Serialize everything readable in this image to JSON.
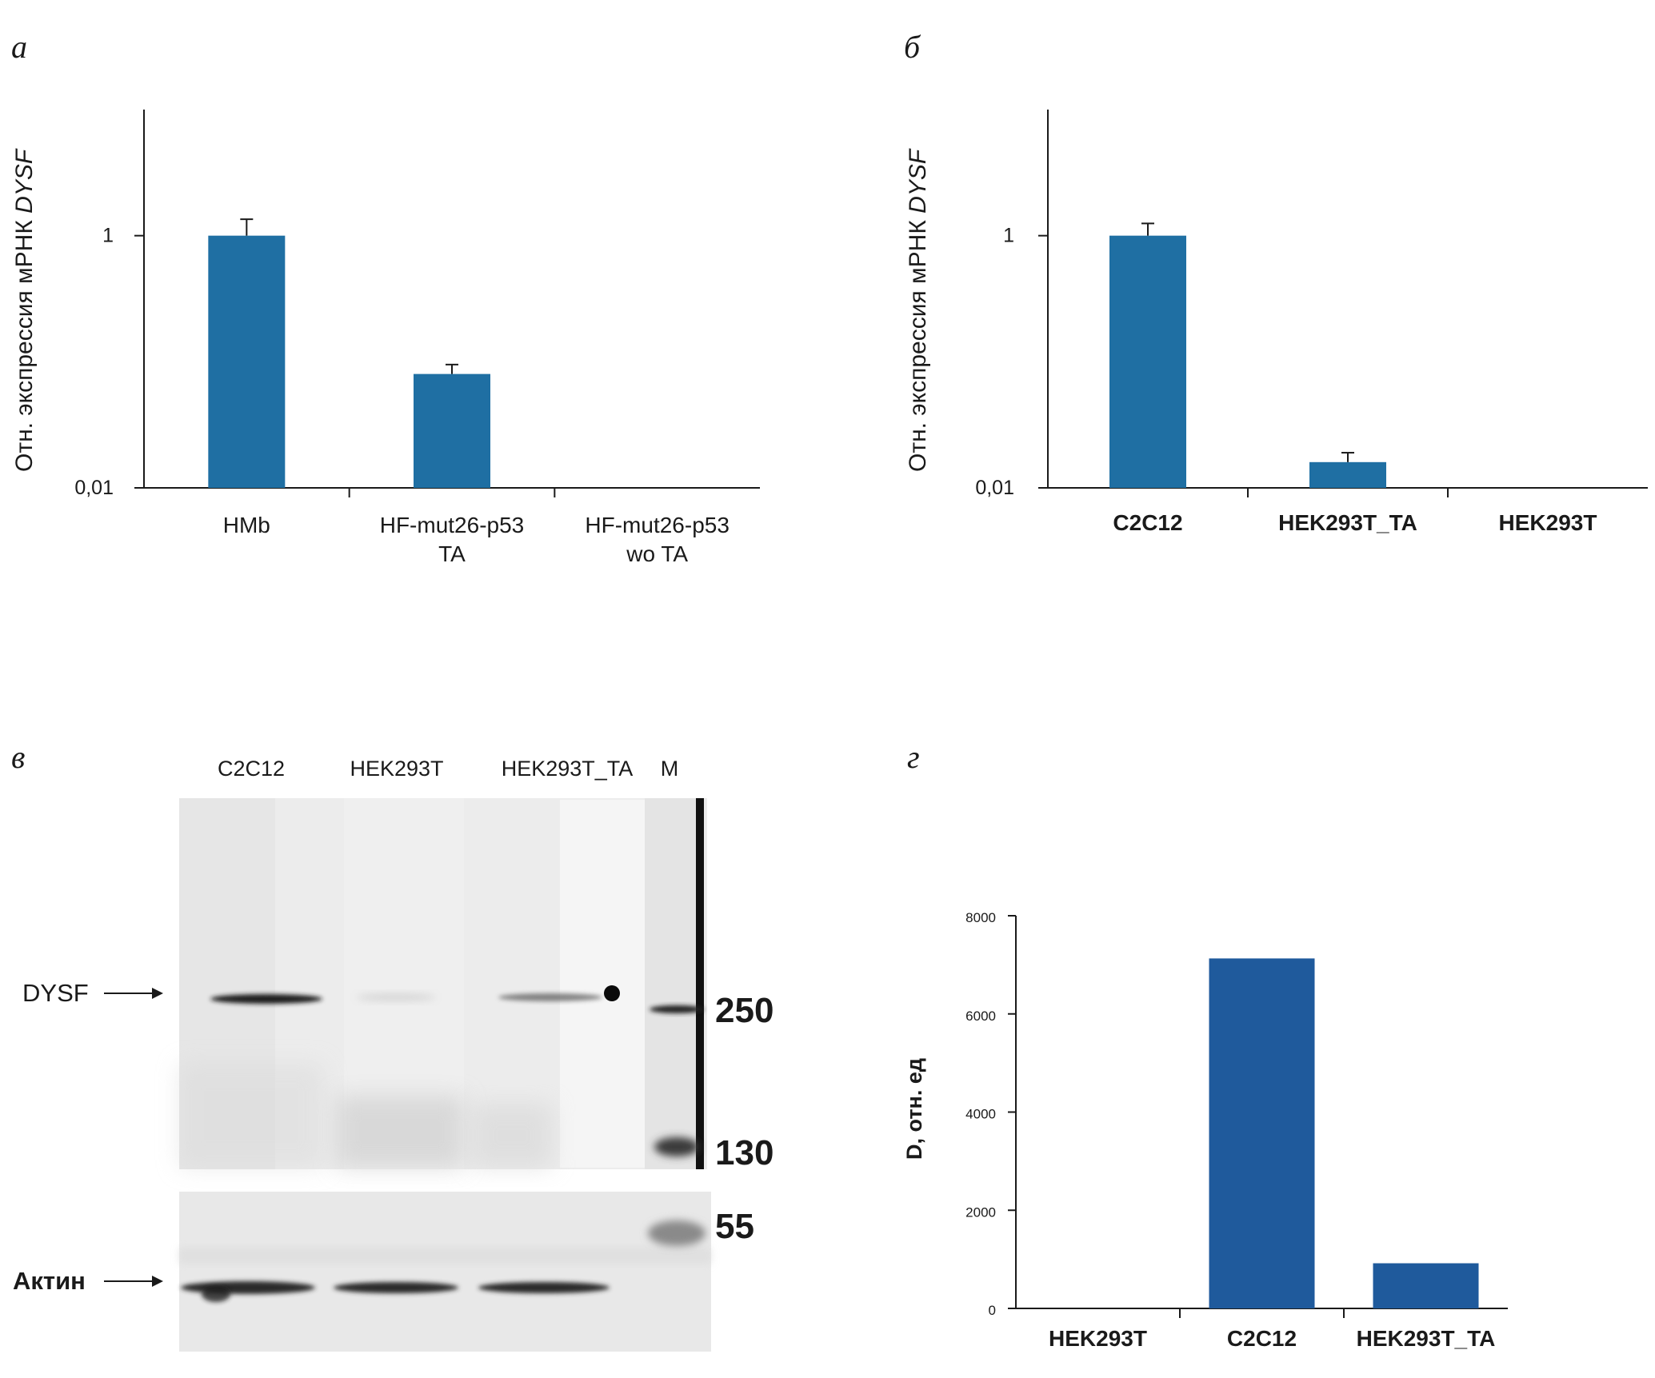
{
  "colors": {
    "bar_blue_top": "#1f6fa3",
    "bar_blue_bottom": "#1f5a9c",
    "axis": "#1a1a1a",
    "blot_background": "#eeeeee"
  },
  "panels": {
    "a": "а",
    "b": "б",
    "v": "в",
    "g": "г"
  },
  "chart_data": [
    {
      "panel": "а",
      "type": "bar",
      "ylabel": "Отн. экспрессия мРНК DYSF",
      "ylabel_plain": "Отн. экспрессия мРНК ",
      "ylabel_italic": "DYSF",
      "yscale": "log",
      "ylim": [
        0.01,
        10
      ],
      "yticks": [
        0.01,
        1
      ],
      "yticklabels": [
        "0,01",
        "1"
      ],
      "categories": [
        "HMb",
        "HF-mut26-p53 TA",
        "HF-mut26-p53 wo TA"
      ],
      "category_lines": [
        [
          "HMb"
        ],
        [
          "HF-mut26-p53",
          "TA"
        ],
        [
          "HF-mut26-p53",
          "wo TA"
        ]
      ],
      "values": [
        1.0,
        0.08,
        null
      ],
      "errors": [
        0.35,
        0.015,
        null
      ]
    },
    {
      "panel": "б",
      "type": "bar",
      "ylabel": "Отн. экспрессия мРНК DYSF",
      "ylabel_plain": "Отн. экспрессия мРНК ",
      "ylabel_italic": "DYSF",
      "yscale": "log",
      "ylim": [
        0.01,
        10
      ],
      "yticks": [
        0.01,
        1
      ],
      "yticklabels": [
        "0,01",
        "1"
      ],
      "categories": [
        "C2C12",
        "HEK293T_TA",
        "HEK293T"
      ],
      "category_lines": [
        [
          "C2C12"
        ],
        [
          "HEK293T_TA"
        ],
        [
          "HEK293T"
        ]
      ],
      "values": [
        1.0,
        0.016,
        null
      ],
      "errors": [
        0.25,
        0.003,
        null
      ]
    },
    {
      "panel": "г",
      "type": "bar",
      "ylabel": "D, отн. ед",
      "ylim": [
        0,
        8000
      ],
      "yticks": [
        0,
        2000,
        4000,
        6000,
        8000
      ],
      "yticklabels": [
        "0",
        "2000",
        "4000",
        "6000",
        "8000"
      ],
      "categories": [
        "HEK293T",
        "C2C12",
        "HEK293T_TA"
      ],
      "values": [
        0,
        7130,
        920
      ]
    }
  ],
  "blot": {
    "lane_labels": [
      "C2C12",
      "HEK293T",
      "HEK293T_TA",
      "M"
    ],
    "dysf_label": "DYSF",
    "actin_label": "Актин",
    "marker_labels": [
      "250",
      "130",
      "55"
    ]
  }
}
